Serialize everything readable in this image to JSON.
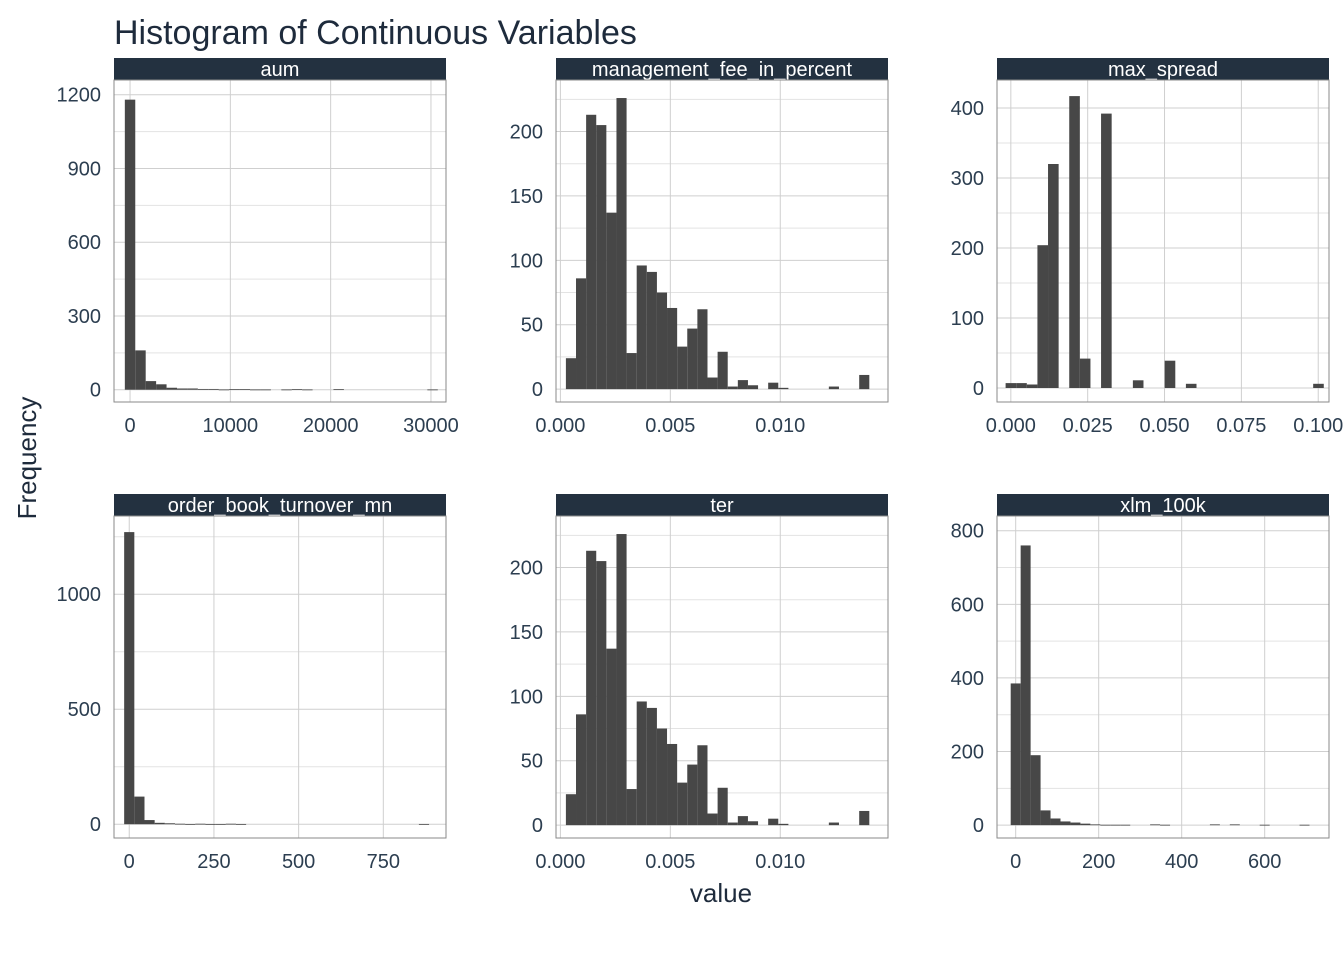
{
  "chart_data": {
    "type": "bar",
    "title": "Histogram of Continuous Variables",
    "xlabel": "value",
    "ylabel": "Frequency",
    "colors": {
      "bar": "#474747",
      "strip": "#233140",
      "text": "#2c3e50"
    },
    "facets": [
      {
        "name": "aum",
        "xlim": [
          -1600,
          31500
        ],
        "ylim": [
          -50,
          1260
        ],
        "xticks": [
          0,
          10000,
          20000,
          30000
        ],
        "xtick_labels": [
          "0",
          "10000",
          "20000",
          "30000"
        ],
        "yticks": [
          0,
          300,
          600,
          900,
          1200
        ],
        "ytick_labels": [
          "0",
          "300",
          "600",
          "900",
          "1200"
        ],
        "bin_start": -520,
        "bin_width": 1040,
        "counts": [
          1180,
          160,
          35,
          22,
          8,
          5,
          5,
          3,
          3,
          1,
          2,
          2,
          1,
          1,
          0,
          1,
          2,
          1,
          0,
          0,
          2,
          0,
          0,
          0,
          0,
          0,
          0,
          0,
          0,
          1
        ]
      },
      {
        "name": "management_fee_in_percent",
        "xlim": [
          -0.0002,
          0.0149
        ],
        "ylim": [
          -10,
          240
        ],
        "xticks": [
          0.0,
          0.005,
          0.01
        ],
        "xtick_labels": [
          "0.000",
          "0.005",
          "0.010"
        ],
        "yticks": [
          0,
          50,
          100,
          150,
          200
        ],
        "ytick_labels": [
          "0",
          "50",
          "100",
          "150",
          "200"
        ],
        "bin_start": 0.00025,
        "bin_width": 0.00046,
        "counts": [
          24,
          86,
          213,
          205,
          137,
          226,
          28,
          96,
          91,
          75,
          63,
          33,
          47,
          62,
          9,
          29,
          2,
          7,
          3,
          0,
          5,
          1,
          0,
          0,
          0,
          0,
          2,
          0,
          0,
          11
        ]
      },
      {
        "name": "max_spread",
        "xlim": [
          -0.0045,
          0.1035
        ],
        "ylim": [
          -20,
          440
        ],
        "xticks": [
          0.0,
          0.025,
          0.05,
          0.075,
          0.1
        ],
        "xtick_labels": [
          "0.000",
          "0.025",
          "0.050",
          "0.075",
          "0.100"
        ],
        "yticks": [
          0,
          100,
          200,
          300,
          400
        ],
        "ytick_labels": [
          "0",
          "100",
          "200",
          "300",
          "400"
        ],
        "bin_start": -0.0017,
        "bin_width": 0.00345,
        "counts": [
          7,
          7,
          5,
          204,
          320,
          0,
          417,
          42,
          0,
          392,
          0,
          0,
          11,
          0,
          0,
          39,
          0,
          6,
          0,
          0,
          0,
          0,
          0,
          0,
          0,
          0,
          0,
          0,
          0,
          6
        ]
      },
      {
        "name": "order_book_turnover_mn",
        "xlim": [
          -45,
          935
        ],
        "ylim": [
          -60,
          1340
        ],
        "xticks": [
          0,
          250,
          500,
          750
        ],
        "xtick_labels": [
          "0",
          "250",
          "500",
          "750"
        ],
        "yticks": [
          0,
          500,
          1000
        ],
        "ytick_labels": [
          "0",
          "500",
          "1000"
        ],
        "bin_start": -15,
        "bin_width": 30,
        "counts": [
          1270,
          120,
          18,
          6,
          4,
          2,
          1,
          2,
          1,
          1,
          2,
          1,
          0,
          0,
          0,
          0,
          0,
          0,
          0,
          0,
          0,
          0,
          0,
          0,
          0,
          0,
          0,
          0,
          0,
          1
        ]
      },
      {
        "name": "ter",
        "xlim": [
          -0.0002,
          0.0149
        ],
        "ylim": [
          -10,
          240
        ],
        "xticks": [
          0.0,
          0.005,
          0.01
        ],
        "xtick_labels": [
          "0.000",
          "0.005",
          "0.010"
        ],
        "yticks": [
          0,
          50,
          100,
          150,
          200
        ],
        "ytick_labels": [
          "0",
          "50",
          "100",
          "150",
          "200"
        ],
        "bin_start": 0.00025,
        "bin_width": 0.00046,
        "counts": [
          24,
          86,
          213,
          205,
          137,
          226,
          28,
          96,
          91,
          75,
          63,
          33,
          47,
          62,
          9,
          29,
          2,
          7,
          3,
          0,
          5,
          1,
          0,
          0,
          0,
          0,
          2,
          0,
          0,
          11
        ]
      },
      {
        "name": "xlm_100k",
        "xlim": [
          -45,
          755
        ],
        "ylim": [
          -35,
          840
        ],
        "xticks": [
          0,
          200,
          400,
          600
        ],
        "xtick_labels": [
          "0",
          "200",
          "400",
          "600"
        ],
        "yticks": [
          0,
          200,
          400,
          600,
          800
        ],
        "ytick_labels": [
          "0",
          "200",
          "400",
          "600",
          "800"
        ],
        "bin_start": -12,
        "bin_width": 24,
        "counts": [
          385,
          760,
          190,
          40,
          18,
          10,
          7,
          4,
          2,
          1,
          1,
          1,
          0,
          0,
          2,
          1,
          0,
          0,
          0,
          0,
          2,
          0,
          2,
          0,
          0,
          1,
          0,
          0,
          0,
          1
        ]
      }
    ]
  }
}
